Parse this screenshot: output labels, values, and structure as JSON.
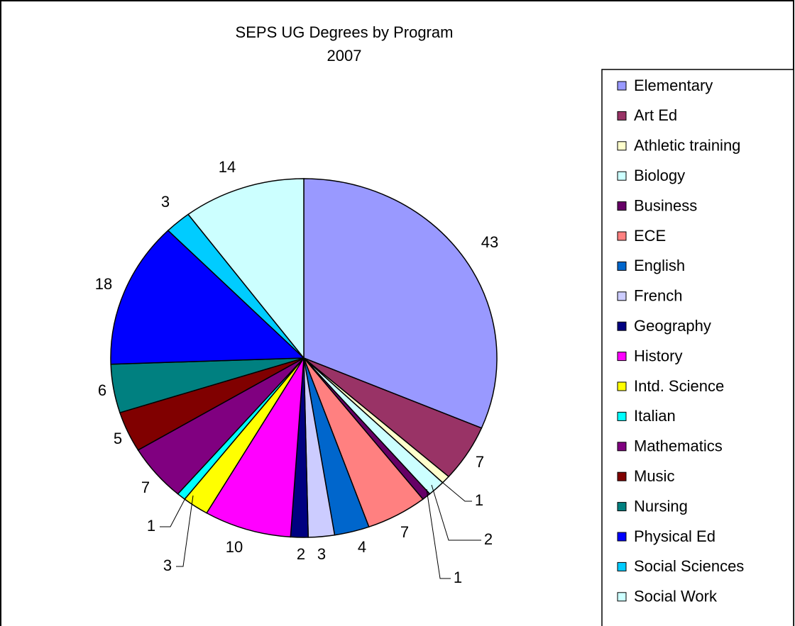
{
  "chart_data": {
    "type": "pie",
    "title": "SEPS UG Degrees by Program",
    "subtitle": "2007",
    "categories": [
      "Elementary",
      "Art Ed",
      "Athletic training",
      "Biology",
      "Business",
      "ECE",
      "English",
      "French",
      "Geography",
      "History",
      "Intd. Science",
      "Italian",
      "Mathematics",
      "Music",
      "Nursing",
      "Physical Ed",
      "Social Sciences",
      "Social Work"
    ],
    "values": [
      43,
      7,
      1,
      2,
      1,
      7,
      4,
      3,
      2,
      10,
      3,
      1,
      7,
      5,
      6,
      18,
      3,
      14
    ],
    "colors": [
      "#9999ff",
      "#993366",
      "#ffffcc",
      "#ccffff",
      "#660066",
      "#ff8080",
      "#0066cc",
      "#ccccff",
      "#000080",
      "#ff00ff",
      "#ffff00",
      "#00ffff",
      "#800080",
      "#800000",
      "#008080",
      "#0000ff",
      "#00ccff",
      "#ccffff"
    ],
    "legend": "right"
  }
}
